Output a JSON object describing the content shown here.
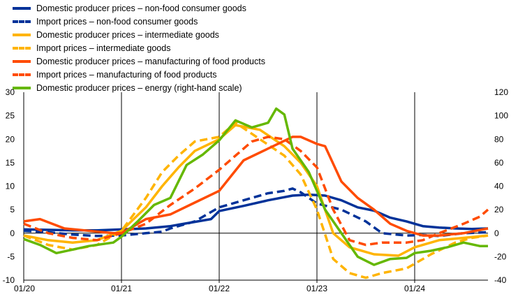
{
  "chart_data": {
    "type": "line",
    "title": "",
    "xlabel": "",
    "ylabel": "",
    "x_start": "2020-01",
    "x_end": "2024-10",
    "x_ticks": [
      {
        "date": "2020-01",
        "label": "01/20"
      },
      {
        "date": "2021-01",
        "label": "01/21"
      },
      {
        "date": "2022-01",
        "label": "01/22"
      },
      {
        "date": "2023-01",
        "label": "01/23"
      },
      {
        "date": "2024-01",
        "label": "01/24"
      }
    ],
    "ylim_left": [
      -10,
      30
    ],
    "yticks_left": [
      "30",
      "25",
      "20",
      "15",
      "10",
      "5",
      "0",
      "-5",
      "-10"
    ],
    "ylim_right": [
      -40,
      120
    ],
    "yticks_right": [
      "120",
      "100",
      "80",
      "60",
      "40",
      "20",
      "0",
      "-20",
      "-40"
    ],
    "grid": false,
    "legend_position": "top-left",
    "series": [
      {
        "name": "Domestic producer prices – non-food consumer goods",
        "color": "#003299",
        "style": "solid",
        "axis": "left",
        "points": [
          [
            "2020-01",
            0.8
          ],
          [
            "2020-04",
            0.7
          ],
          [
            "2020-07",
            0.6
          ],
          [
            "2020-10",
            0.6
          ],
          [
            "2021-01",
            0.8
          ],
          [
            "2021-04",
            1.0
          ],
          [
            "2021-07",
            1.5
          ],
          [
            "2021-10",
            2.4
          ],
          [
            "2021-12",
            3.0
          ],
          [
            "2022-01",
            4.7
          ],
          [
            "2022-04",
            5.8
          ],
          [
            "2022-07",
            7.0
          ],
          [
            "2022-10",
            8.0
          ],
          [
            "2022-12",
            8.2
          ],
          [
            "2023-02",
            8.0
          ],
          [
            "2023-04",
            7.0
          ],
          [
            "2023-06",
            5.5
          ],
          [
            "2023-08",
            4.8
          ],
          [
            "2023-10",
            3.3
          ],
          [
            "2023-12",
            2.5
          ],
          [
            "2024-02",
            1.5
          ],
          [
            "2024-04",
            1.2
          ],
          [
            "2024-06",
            1.0
          ],
          [
            "2024-08",
            0.9
          ],
          [
            "2024-10",
            1.0
          ]
        ]
      },
      {
        "name": "Import prices – non-food consumer goods",
        "color": "#003299",
        "style": "dashed",
        "axis": "left",
        "points": [
          [
            "2020-01",
            0.5
          ],
          [
            "2020-04",
            0.2
          ],
          [
            "2020-07",
            -0.3
          ],
          [
            "2020-10",
            -0.6
          ],
          [
            "2021-01",
            -0.5
          ],
          [
            "2021-04",
            0.0
          ],
          [
            "2021-06",
            0.3
          ],
          [
            "2021-07",
            1.0
          ],
          [
            "2021-10",
            2.5
          ],
          [
            "2022-01",
            5.5
          ],
          [
            "2022-04",
            7.0
          ],
          [
            "2022-07",
            8.5
          ],
          [
            "2022-09",
            9.0
          ],
          [
            "2022-10",
            9.5
          ],
          [
            "2022-11",
            8.7
          ],
          [
            "2023-01",
            6.3
          ],
          [
            "2023-04",
            5.0
          ],
          [
            "2023-07",
            2.5
          ],
          [
            "2023-09",
            0.0
          ],
          [
            "2023-12",
            -0.5
          ],
          [
            "2024-02",
            -0.4
          ],
          [
            "2024-04",
            -0.6
          ],
          [
            "2024-07",
            0.0
          ],
          [
            "2024-10",
            0.2
          ]
        ]
      },
      {
        "name": "Domestic producer prices – intermediate goods",
        "color": "#ffb400",
        "style": "solid",
        "axis": "left",
        "points": [
          [
            "2020-01",
            -0.5
          ],
          [
            "2020-04",
            -1.5
          ],
          [
            "2020-07",
            -2.0
          ],
          [
            "2020-10",
            -1.5
          ],
          [
            "2021-01",
            0.5
          ],
          [
            "2021-04",
            5.5
          ],
          [
            "2021-06",
            10.0
          ],
          [
            "2021-08",
            14.0
          ],
          [
            "2021-10",
            17.5
          ],
          [
            "2022-01",
            20.0
          ],
          [
            "2022-03",
            23.0
          ],
          [
            "2022-06",
            22.0
          ],
          [
            "2022-09",
            18.5
          ],
          [
            "2022-11",
            15.0
          ],
          [
            "2023-01",
            10.0
          ],
          [
            "2023-03",
            0.0
          ],
          [
            "2023-05",
            -3.0
          ],
          [
            "2023-08",
            -4.5
          ],
          [
            "2023-11",
            -4.8
          ],
          [
            "2024-01",
            -3.0
          ],
          [
            "2024-04",
            -1.5
          ],
          [
            "2024-07",
            -1.0
          ],
          [
            "2024-10",
            -0.5
          ]
        ]
      },
      {
        "name": "Import prices – intermediate goods",
        "color": "#ffb400",
        "style": "dashed",
        "axis": "left",
        "points": [
          [
            "2020-01",
            -0.5
          ],
          [
            "2020-04",
            -2.5
          ],
          [
            "2020-07",
            -3.5
          ],
          [
            "2020-10",
            -2.5
          ],
          [
            "2021-01",
            0.5
          ],
          [
            "2021-04",
            7.5
          ],
          [
            "2021-06",
            13.0
          ],
          [
            "2021-08",
            16.5
          ],
          [
            "2021-10",
            19.5
          ],
          [
            "2022-01",
            20.5
          ],
          [
            "2022-03",
            23.5
          ],
          [
            "2022-06",
            20.0
          ],
          [
            "2022-09",
            16.5
          ],
          [
            "2022-11",
            12.5
          ],
          [
            "2023-01",
            5.0
          ],
          [
            "2023-03",
            -5.5
          ],
          [
            "2023-05",
            -8.5
          ],
          [
            "2023-07",
            -9.5
          ],
          [
            "2023-09",
            -8.5
          ],
          [
            "2023-12",
            -7.5
          ],
          [
            "2024-03",
            -4.5
          ],
          [
            "2024-06",
            -2.0
          ],
          [
            "2024-08",
            -1.0
          ],
          [
            "2024-10",
            -0.5
          ]
        ]
      },
      {
        "name": "Domestic producer prices – manufacturing of food products",
        "color": "#ff4b00",
        "style": "solid",
        "axis": "left",
        "points": [
          [
            "2020-01",
            2.5
          ],
          [
            "2020-03",
            3.0
          ],
          [
            "2020-06",
            1.0
          ],
          [
            "2020-09",
            0.5
          ],
          [
            "2020-12",
            0.0
          ],
          [
            "2021-01",
            0.0
          ],
          [
            "2021-04",
            3.0
          ],
          [
            "2021-07",
            4.0
          ],
          [
            "2021-10",
            6.5
          ],
          [
            "2022-01",
            9.0
          ],
          [
            "2022-04",
            15.5
          ],
          [
            "2022-07",
            18.0
          ],
          [
            "2022-10",
            20.5
          ],
          [
            "2022-11",
            20.5
          ],
          [
            "2023-01",
            19.0
          ],
          [
            "2023-02",
            18.5
          ],
          [
            "2023-04",
            11.0
          ],
          [
            "2023-06",
            7.5
          ],
          [
            "2023-08",
            5.0
          ],
          [
            "2023-10",
            2.0
          ],
          [
            "2023-12",
            0.5
          ],
          [
            "2024-02",
            -0.5
          ],
          [
            "2024-04",
            -0.5
          ],
          [
            "2024-07",
            0.0
          ],
          [
            "2024-10",
            1.0
          ]
        ]
      },
      {
        "name": "Import prices – manufacturing of food products",
        "color": "#ff4b00",
        "style": "dashed",
        "axis": "left",
        "points": [
          [
            "2020-01",
            2.0
          ],
          [
            "2020-04",
            0.0
          ],
          [
            "2020-07",
            -1.0
          ],
          [
            "2020-10",
            -1.5
          ],
          [
            "2021-01",
            0.0
          ],
          [
            "2021-04",
            2.0
          ],
          [
            "2021-07",
            6.0
          ],
          [
            "2021-10",
            9.5
          ],
          [
            "2022-01",
            13.5
          ],
          [
            "2022-03",
            16.5
          ],
          [
            "2022-05",
            19.5
          ],
          [
            "2022-07",
            20.5
          ],
          [
            "2022-09",
            20.0
          ],
          [
            "2022-11",
            17.5
          ],
          [
            "2023-01",
            14.0
          ],
          [
            "2023-03",
            5.0
          ],
          [
            "2023-05",
            -1.5
          ],
          [
            "2023-07",
            -2.5
          ],
          [
            "2023-09",
            -2.0
          ],
          [
            "2023-12",
            -2.0
          ],
          [
            "2024-02",
            -1.5
          ],
          [
            "2024-04",
            0.0
          ],
          [
            "2024-07",
            2.0
          ],
          [
            "2024-09",
            3.5
          ],
          [
            "2024-10",
            5.0
          ]
        ]
      },
      {
        "name": "Domestic producer prices – energy (right-hand scale)",
        "color": "#65b800",
        "style": "solid",
        "axis": "right",
        "points": [
          [
            "2020-01",
            -5
          ],
          [
            "2020-03",
            -10
          ],
          [
            "2020-05",
            -17
          ],
          [
            "2020-07",
            -14
          ],
          [
            "2020-09",
            -11
          ],
          [
            "2020-12",
            -8
          ],
          [
            "2021-01",
            -3
          ],
          [
            "2021-03",
            10
          ],
          [
            "2021-05",
            24
          ],
          [
            "2021-07",
            30
          ],
          [
            "2021-09",
            58
          ],
          [
            "2021-11",
            67
          ],
          [
            "2022-01",
            79
          ],
          [
            "2022-03",
            96
          ],
          [
            "2022-05",
            90
          ],
          [
            "2022-07",
            94
          ],
          [
            "2022-08",
            106
          ],
          [
            "2022-09",
            101
          ],
          [
            "2022-10",
            72
          ],
          [
            "2022-12",
            52
          ],
          [
            "2023-02",
            20
          ],
          [
            "2023-04",
            0
          ],
          [
            "2023-06",
            -20
          ],
          [
            "2023-08",
            -27
          ],
          [
            "2023-10",
            -22
          ],
          [
            "2023-12",
            -21
          ],
          [
            "2024-01",
            -17
          ],
          [
            "2024-03",
            -15
          ],
          [
            "2024-05",
            -12
          ],
          [
            "2024-07",
            -8
          ],
          [
            "2024-09",
            -11
          ],
          [
            "2024-10",
            -11
          ]
        ]
      }
    ]
  }
}
